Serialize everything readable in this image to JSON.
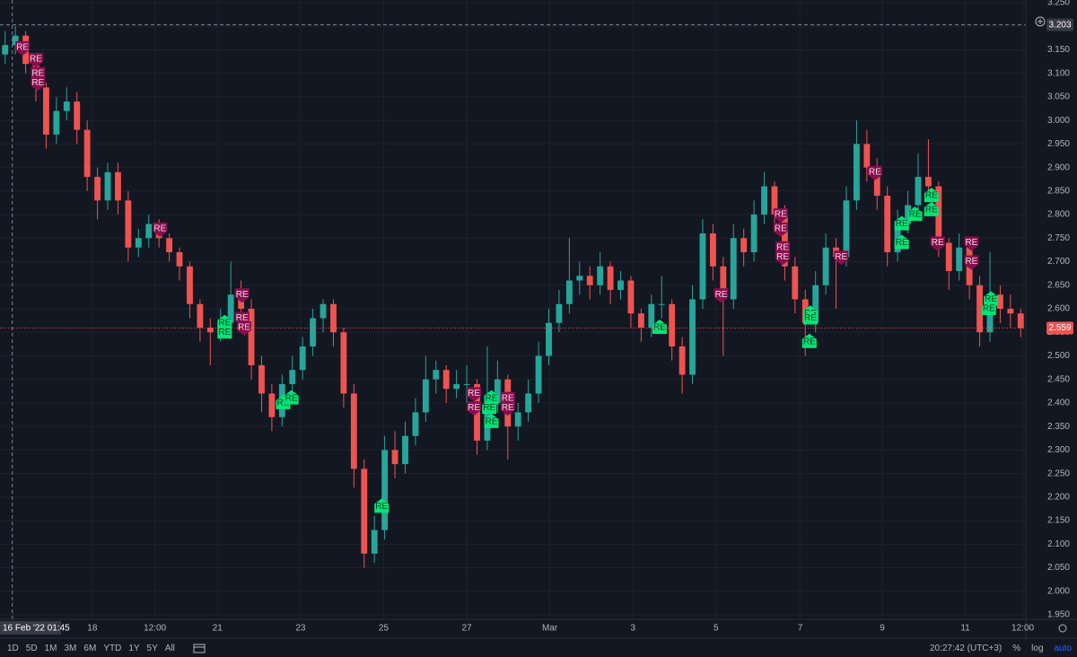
{
  "chart_data": {
    "type": "candlestick",
    "candles": [
      [
        3.14,
        3.19,
        3.12,
        3.16
      ],
      [
        3.16,
        3.2,
        3.14,
        3.18
      ],
      [
        3.18,
        3.19,
        3.1,
        3.12
      ],
      [
        3.12,
        3.14,
        3.04,
        3.07
      ],
      [
        3.07,
        3.08,
        2.94,
        2.97
      ],
      [
        2.97,
        3.05,
        2.95,
        3.02
      ],
      [
        3.02,
        3.07,
        3.0,
        3.04
      ],
      [
        3.04,
        3.06,
        2.95,
        2.98
      ],
      [
        2.98,
        3.0,
        2.85,
        2.88
      ],
      [
        2.88,
        2.9,
        2.79,
        2.83
      ],
      [
        2.83,
        2.91,
        2.81,
        2.89
      ],
      [
        2.89,
        2.91,
        2.8,
        2.83
      ],
      [
        2.83,
        2.85,
        2.7,
        2.73
      ],
      [
        2.73,
        2.77,
        2.71,
        2.75
      ],
      [
        2.75,
        2.8,
        2.73,
        2.78
      ],
      [
        2.78,
        2.79,
        2.73,
        2.75
      ],
      [
        2.75,
        2.76,
        2.7,
        2.72
      ],
      [
        2.72,
        2.73,
        2.66,
        2.69
      ],
      [
        2.69,
        2.7,
        2.58,
        2.61
      ],
      [
        2.61,
        2.62,
        2.53,
        2.56
      ],
      [
        2.56,
        2.58,
        2.48,
        2.55
      ],
      [
        2.55,
        2.6,
        2.53,
        2.57
      ],
      [
        2.57,
        2.7,
        2.55,
        2.63
      ],
      [
        2.63,
        2.66,
        2.57,
        2.6
      ],
      [
        2.6,
        2.62,
        2.45,
        2.48
      ],
      [
        2.48,
        2.5,
        2.38,
        2.42
      ],
      [
        2.42,
        2.44,
        2.34,
        2.37
      ],
      [
        2.37,
        2.46,
        2.35,
        2.44
      ],
      [
        2.44,
        2.5,
        2.42,
        2.47
      ],
      [
        2.47,
        2.54,
        2.45,
        2.52
      ],
      [
        2.52,
        2.6,
        2.5,
        2.58
      ],
      [
        2.58,
        2.62,
        2.55,
        2.61
      ],
      [
        2.61,
        2.62,
        2.52,
        2.55
      ],
      [
        2.55,
        2.56,
        2.39,
        2.42
      ],
      [
        2.42,
        2.44,
        2.22,
        2.26
      ],
      [
        2.26,
        2.28,
        2.05,
        2.08
      ],
      [
        2.08,
        2.16,
        2.06,
        2.13
      ],
      [
        2.13,
        2.33,
        2.11,
        2.3
      ],
      [
        2.3,
        2.34,
        2.24,
        2.27
      ],
      [
        2.27,
        2.36,
        2.25,
        2.33
      ],
      [
        2.33,
        2.41,
        2.31,
        2.38
      ],
      [
        2.38,
        2.5,
        2.36,
        2.45
      ],
      [
        2.45,
        2.49,
        2.42,
        2.47
      ],
      [
        2.47,
        2.48,
        2.4,
        2.43
      ],
      [
        2.43,
        2.47,
        2.41,
        2.44
      ],
      [
        2.44,
        2.48,
        2.4,
        2.44
      ],
      [
        2.44,
        2.45,
        2.29,
        2.32
      ],
      [
        2.32,
        2.52,
        2.3,
        2.4
      ],
      [
        2.4,
        2.49,
        2.38,
        2.45
      ],
      [
        2.45,
        2.46,
        2.28,
        2.35
      ],
      [
        2.35,
        2.4,
        2.32,
        2.38
      ],
      [
        2.38,
        2.45,
        2.36,
        2.42
      ],
      [
        2.42,
        2.53,
        2.4,
        2.5
      ],
      [
        2.5,
        2.6,
        2.48,
        2.57
      ],
      [
        2.57,
        2.64,
        2.55,
        2.61
      ],
      [
        2.61,
        2.75,
        2.59,
        2.66
      ],
      [
        2.66,
        2.7,
        2.63,
        2.67
      ],
      [
        2.67,
        2.69,
        2.62,
        2.65
      ],
      [
        2.65,
        2.72,
        2.63,
        2.69
      ],
      [
        2.69,
        2.7,
        2.61,
        2.64
      ],
      [
        2.64,
        2.68,
        2.62,
        2.66
      ],
      [
        2.66,
        2.67,
        2.56,
        2.59
      ],
      [
        2.59,
        2.6,
        2.53,
        2.56
      ],
      [
        2.56,
        2.63,
        2.54,
        2.61
      ],
      [
        2.61,
        2.67,
        2.58,
        2.61
      ],
      [
        2.61,
        2.62,
        2.49,
        2.52
      ],
      [
        2.52,
        2.54,
        2.42,
        2.46
      ],
      [
        2.46,
        2.65,
        2.44,
        2.62
      ],
      [
        2.62,
        2.79,
        2.6,
        2.76
      ],
      [
        2.76,
        2.78,
        2.66,
        2.69
      ],
      [
        2.69,
        2.71,
        2.5,
        2.62
      ],
      [
        2.62,
        2.78,
        2.6,
        2.75
      ],
      [
        2.75,
        2.77,
        2.69,
        2.72
      ],
      [
        2.72,
        2.83,
        2.7,
        2.8
      ],
      [
        2.8,
        2.89,
        2.78,
        2.86
      ],
      [
        2.86,
        2.87,
        2.77,
        2.8
      ],
      [
        2.8,
        2.82,
        2.66,
        2.69
      ],
      [
        2.69,
        2.71,
        2.59,
        2.62
      ],
      [
        2.62,
        2.64,
        2.5,
        2.57
      ],
      [
        2.57,
        2.68,
        2.55,
        2.65
      ],
      [
        2.65,
        2.76,
        2.63,
        2.73
      ],
      [
        2.73,
        2.75,
        2.6,
        2.71
      ],
      [
        2.71,
        2.86,
        2.69,
        2.83
      ],
      [
        2.83,
        3.0,
        2.81,
        2.95
      ],
      [
        2.95,
        2.98,
        2.87,
        2.9
      ],
      [
        2.9,
        2.92,
        2.81,
        2.84
      ],
      [
        2.84,
        2.86,
        2.69,
        2.72
      ],
      [
        2.72,
        2.81,
        2.7,
        2.78
      ],
      [
        2.78,
        2.85,
        2.76,
        2.82
      ],
      [
        2.82,
        2.93,
        2.8,
        2.88
      ],
      [
        2.88,
        2.96,
        2.83,
        2.86
      ],
      [
        2.86,
        2.87,
        2.71,
        2.74
      ],
      [
        2.74,
        2.75,
        2.64,
        2.68
      ],
      [
        2.68,
        2.76,
        2.66,
        2.73
      ],
      [
        2.73,
        2.74,
        2.62,
        2.65
      ],
      [
        2.65,
        2.67,
        2.52,
        2.55
      ],
      [
        2.55,
        2.72,
        2.53,
        2.63
      ],
      [
        2.63,
        2.65,
        2.57,
        2.6
      ],
      [
        2.6,
        2.63,
        2.56,
        2.59
      ],
      [
        2.59,
        2.6,
        2.54,
        2.559
      ]
    ],
    "up_color": "#26a69a",
    "down_color": "#ef5350",
    "xlim": [
      -0.5,
      99.5
    ],
    "xticks": [
      {
        "value": 8.5,
        "label": "18"
      },
      {
        "value": 14.6,
        "label": "12:00"
      },
      {
        "value": 20.7,
        "label": "21"
      },
      {
        "value": 28.8,
        "label": "23"
      },
      {
        "value": 36.9,
        "label": "25"
      },
      {
        "value": 45.0,
        "label": "27"
      },
      {
        "value": 53.1,
        "label": "Mar"
      },
      {
        "value": 61.2,
        "label": "3"
      },
      {
        "value": 69.3,
        "label": "5"
      },
      {
        "value": 77.5,
        "label": "7"
      },
      {
        "value": 85.5,
        "label": "9"
      },
      {
        "value": 93.6,
        "label": "11"
      },
      {
        "value": 99.2,
        "label": "12:00"
      }
    ],
    "ylim": [
      1.91,
      3.2557
    ],
    "yticks": [
      {
        "value": 3.25,
        "label": "3.250"
      },
      {
        "value": 3.2,
        "label": "3.200"
      },
      {
        "value": 3.15,
        "label": "3.150"
      },
      {
        "value": 3.1,
        "label": "3.100"
      },
      {
        "value": 3.05,
        "label": "3.050"
      },
      {
        "value": 3.0,
        "label": "3.000"
      },
      {
        "value": 2.95,
        "label": "2.950"
      },
      {
        "value": 2.9,
        "label": "2.900"
      },
      {
        "value": 2.85,
        "label": "2.850"
      },
      {
        "value": 2.8,
        "label": "2.800"
      },
      {
        "value": 2.75,
        "label": "2.750"
      },
      {
        "value": 2.7,
        "label": "2.700"
      },
      {
        "value": 2.65,
        "label": "2.650"
      },
      {
        "value": 2.6,
        "label": "2.600"
      },
      {
        "value": 2.55,
        "label": "2.550"
      },
      {
        "value": 2.5,
        "label": "2.500"
      },
      {
        "value": 2.45,
        "label": "2.450"
      },
      {
        "value": 2.4,
        "label": "2.400"
      },
      {
        "value": 2.35,
        "label": "2.350"
      },
      {
        "value": 2.3,
        "label": "2.300"
      },
      {
        "value": 2.25,
        "label": "2.250"
      },
      {
        "value": 2.2,
        "label": "2.200"
      },
      {
        "value": 2.15,
        "label": "2.150"
      },
      {
        "value": 2.1,
        "label": "2.100"
      },
      {
        "value": 2.05,
        "label": "2.050"
      },
      {
        "value": 2.0,
        "label": "2.000"
      },
      {
        "value": 1.95,
        "label": "1.950"
      }
    ],
    "grid": true,
    "last_price": 2.559,
    "crosshair": {
      "x": 0.7,
      "x_label": "16 Feb '22 01:45",
      "y": 3.203
    },
    "marker_colors": {
      "sell": "#880e4f",
      "buy": "#00e676"
    },
    "markers": [
      {
        "index": 1.7,
        "price": 3.155,
        "side": "sell",
        "label": "RE"
      },
      {
        "index": 3.0,
        "price": 3.13,
        "side": "sell",
        "label": "RE"
      },
      {
        "index": 3.2,
        "price": 3.1,
        "side": "sell",
        "label": "RE"
      },
      {
        "index": 3.2,
        "price": 3.08,
        "side": "sell",
        "label": "RE"
      },
      {
        "index": 15.1,
        "price": 2.77,
        "side": "sell",
        "label": "RE"
      },
      {
        "index": 23.1,
        "price": 2.63,
        "side": "sell",
        "label": "RE"
      },
      {
        "index": 23.1,
        "price": 2.58,
        "side": "sell",
        "label": "RE"
      },
      {
        "index": 23.3,
        "price": 2.56,
        "side": "sell",
        "label": "RE"
      },
      {
        "index": 45.7,
        "price": 2.42,
        "side": "sell",
        "label": "RE"
      },
      {
        "index": 45.7,
        "price": 2.39,
        "side": "sell",
        "label": "RE"
      },
      {
        "index": 49,
        "price": 2.41,
        "side": "sell",
        "label": "RE"
      },
      {
        "index": 49,
        "price": 2.39,
        "side": "sell",
        "label": "RE"
      },
      {
        "index": 69.8,
        "price": 2.63,
        "side": "sell",
        "label": "RE"
      },
      {
        "index": 75.6,
        "price": 2.8,
        "side": "sell",
        "label": "RE"
      },
      {
        "index": 75.6,
        "price": 2.77,
        "side": "sell",
        "label": "RE"
      },
      {
        "index": 75.8,
        "price": 2.73,
        "side": "sell",
        "label": "RE"
      },
      {
        "index": 75.8,
        "price": 2.71,
        "side": "sell",
        "label": "RE"
      },
      {
        "index": 81.5,
        "price": 2.71,
        "side": "sell",
        "label": "RE"
      },
      {
        "index": 84.8,
        "price": 2.89,
        "side": "sell",
        "label": "RE"
      },
      {
        "index": 90.9,
        "price": 2.74,
        "side": "sell",
        "label": "RE"
      },
      {
        "index": 94.2,
        "price": 2.74,
        "side": "sell",
        "label": "RE"
      },
      {
        "index": 94.2,
        "price": 2.7,
        "side": "sell",
        "label": "RE"
      },
      {
        "index": 21.4,
        "price": 2.57,
        "side": "buy",
        "label": "RE"
      },
      {
        "index": 21.4,
        "price": 2.55,
        "side": "buy",
        "label": "RE"
      },
      {
        "index": 27.1,
        "price": 2.4,
        "side": "buy",
        "label": "RE"
      },
      {
        "index": 27.9,
        "price": 2.41,
        "side": "buy",
        "label": "RE"
      },
      {
        "index": 36.7,
        "price": 2.18,
        "side": "buy",
        "label": "RE"
      },
      {
        "index": 47.4,
        "price": 2.41,
        "side": "buy",
        "label": "RE"
      },
      {
        "index": 47.2,
        "price": 2.39,
        "side": "buy",
        "label": "RE"
      },
      {
        "index": 47.4,
        "price": 2.36,
        "side": "buy",
        "label": "RE"
      },
      {
        "index": 63.8,
        "price": 2.56,
        "side": "buy",
        "label": "RE"
      },
      {
        "index": 78.5,
        "price": 2.59,
        "side": "buy",
        "label": "RE"
      },
      {
        "index": 78.5,
        "price": 2.58,
        "side": "buy",
        "label": "RE"
      },
      {
        "index": 78.4,
        "price": 2.53,
        "side": "buy",
        "label": "RE"
      },
      {
        "index": 87.4,
        "price": 2.78,
        "side": "buy",
        "label": "RE"
      },
      {
        "index": 87.4,
        "price": 2.74,
        "side": "buy",
        "label": "RE"
      },
      {
        "index": 88.7,
        "price": 2.8,
        "side": "buy",
        "label": "RE"
      },
      {
        "index": 90.3,
        "price": 2.84,
        "side": "buy",
        "label": "RE"
      },
      {
        "index": 90.3,
        "price": 2.81,
        "side": "buy",
        "label": "RE"
      },
      {
        "index": 96.1,
        "price": 2.62,
        "side": "buy",
        "label": "RE"
      },
      {
        "index": 95.9,
        "price": 2.6,
        "side": "buy",
        "label": "RE"
      }
    ]
  },
  "toolbar": {
    "ranges": [
      "1D",
      "5D",
      "1M",
      "3M",
      "6M",
      "YTD",
      "1Y",
      "5Y",
      "All"
    ],
    "clock": "20:27:42 (UTC+3)",
    "percent": "%",
    "log": "log",
    "auto": "auto"
  }
}
